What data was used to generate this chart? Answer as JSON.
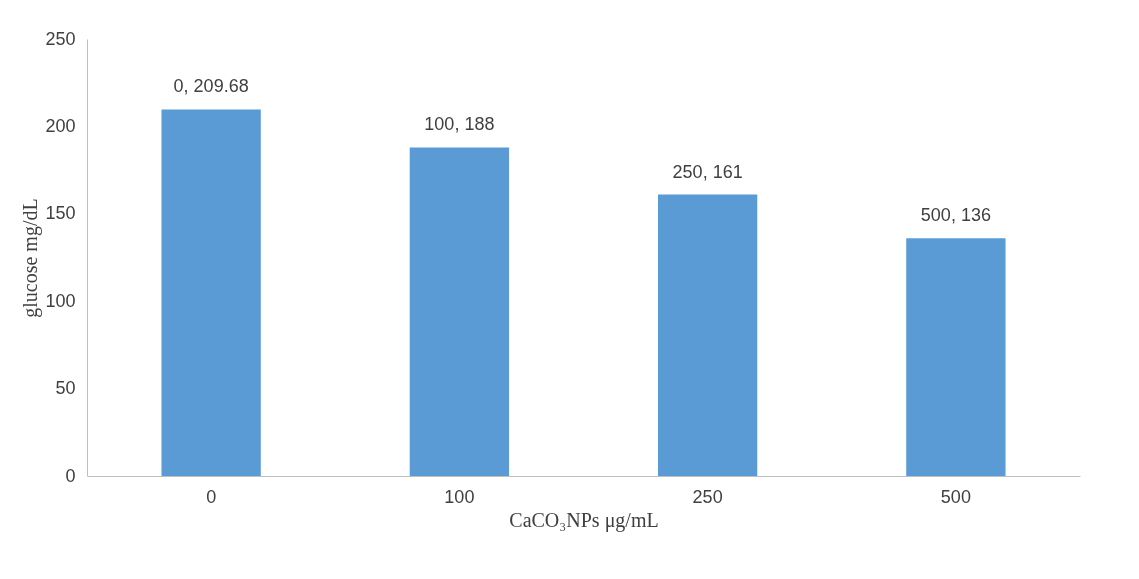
{
  "chart_data": {
    "type": "bar",
    "xlabel": "CaCO₃NPs μg/mL",
    "ylabel": "glucose mg/dL",
    "categories": [
      "0",
      "100",
      "250",
      "500"
    ],
    "values": [
      209.68,
      188,
      161,
      136
    ],
    "value_labels": [
      "0, 209.68",
      "100, 188",
      "250, 161",
      "500, 136"
    ],
    "color": "#5b9bd5",
    "ylim": [
      0,
      250
    ],
    "yticks": [
      0,
      50,
      100,
      150,
      200,
      250
    ]
  }
}
